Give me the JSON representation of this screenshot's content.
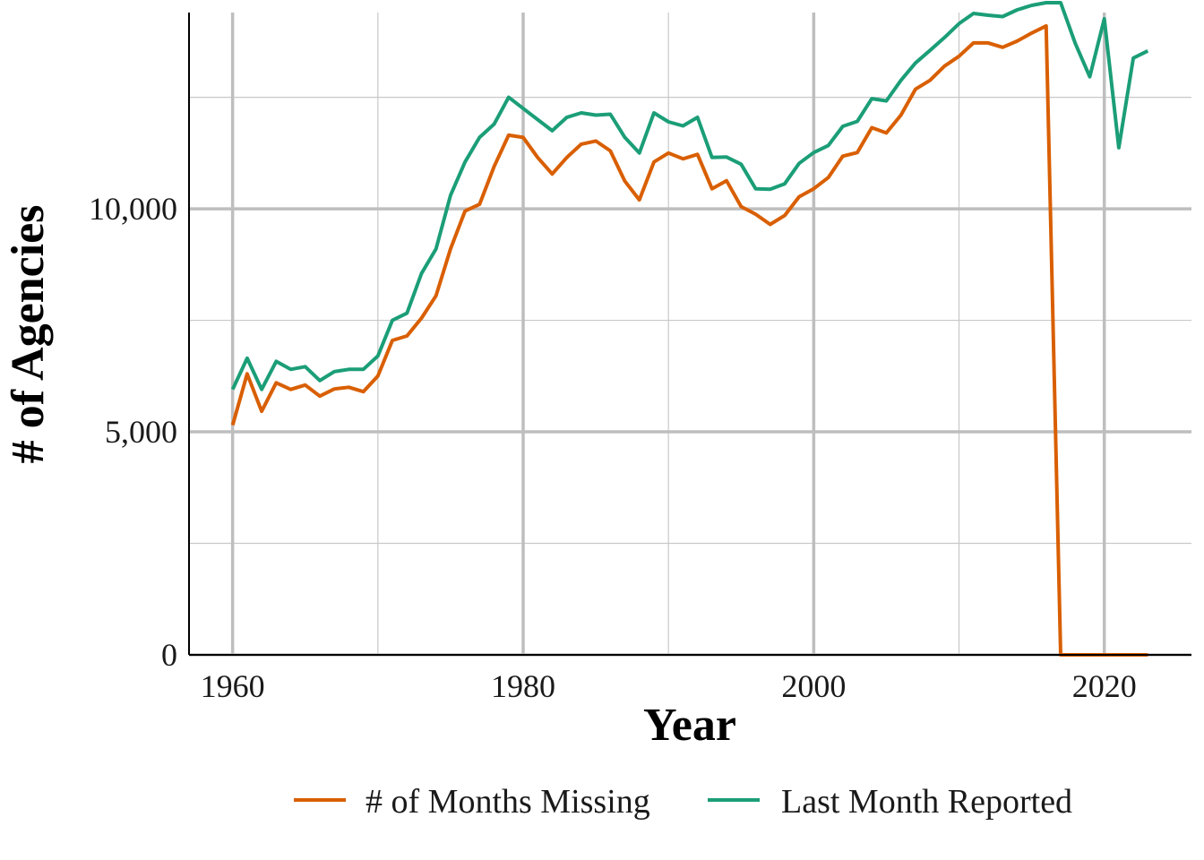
{
  "chart_data": {
    "type": "line",
    "xlabel": "Year",
    "ylabel": "# of Agencies",
    "xlim": [
      1957,
      2026
    ],
    "ylim": [
      0,
      14400
    ],
    "x_ticks": [
      1960,
      1980,
      2000,
      2020
    ],
    "x_minor": [
      1970,
      1990,
      2010
    ],
    "y_ticks": [
      0,
      5000,
      10000
    ],
    "y_tick_labels": [
      "0",
      "5,000",
      "10,000"
    ],
    "y_minor": [
      2500,
      7500,
      12500
    ],
    "grid": true,
    "legend_position": "bottom",
    "x": [
      1960,
      1961,
      1962,
      1963,
      1964,
      1965,
      1966,
      1967,
      1968,
      1969,
      1970,
      1971,
      1972,
      1973,
      1974,
      1975,
      1976,
      1977,
      1978,
      1979,
      1980,
      1981,
      1982,
      1983,
      1984,
      1985,
      1986,
      1987,
      1988,
      1989,
      1990,
      1991,
      1992,
      1993,
      1994,
      1995,
      1996,
      1997,
      1998,
      1999,
      2000,
      2001,
      2002,
      2003,
      2004,
      2005,
      2006,
      2007,
      2008,
      2009,
      2010,
      2011,
      2012,
      2013,
      2014,
      2015,
      2016,
      2017,
      2018,
      2019,
      2020,
      2021,
      2022,
      2023
    ],
    "series": [
      {
        "name": "# of Months Missing",
        "color": "#d95f02",
        "values": [
          5150,
          6300,
          5460,
          6100,
          5950,
          6050,
          5800,
          5960,
          6000,
          5900,
          6250,
          7050,
          7150,
          7550,
          8050,
          9100,
          9950,
          10100,
          10950,
          11650,
          11600,
          11150,
          10780,
          11150,
          11450,
          11520,
          11300,
          10620,
          10200,
          11050,
          11250,
          11120,
          11220,
          10450,
          10630,
          10050,
          9880,
          9650,
          9850,
          10270,
          10450,
          10700,
          11180,
          11260,
          11820,
          11700,
          12100,
          12680,
          12880,
          13200,
          13420,
          13720,
          13720,
          13620,
          13760,
          13940,
          14100,
          0,
          0,
          0,
          0,
          0,
          0,
          0
        ]
      },
      {
        "name": "Last Month Reported",
        "color": "#1b9e77",
        "values": [
          5950,
          6650,
          5950,
          6580,
          6400,
          6460,
          6150,
          6350,
          6400,
          6400,
          6700,
          7500,
          7660,
          8550,
          9100,
          10300,
          11050,
          11600,
          11900,
          12500,
          12250,
          12000,
          11750,
          12050,
          12150,
          12100,
          12120,
          11600,
          11250,
          12150,
          11950,
          11860,
          12050,
          11150,
          11160,
          11000,
          10450,
          10440,
          10560,
          11020,
          11260,
          11420,
          11850,
          11960,
          12470,
          12420,
          12880,
          13270,
          13550,
          13840,
          14150,
          14380,
          14340,
          14310,
          14460,
          14560,
          14620,
          14620,
          13710,
          12960,
          14260,
          11370,
          13380,
          13540
        ]
      }
    ]
  }
}
